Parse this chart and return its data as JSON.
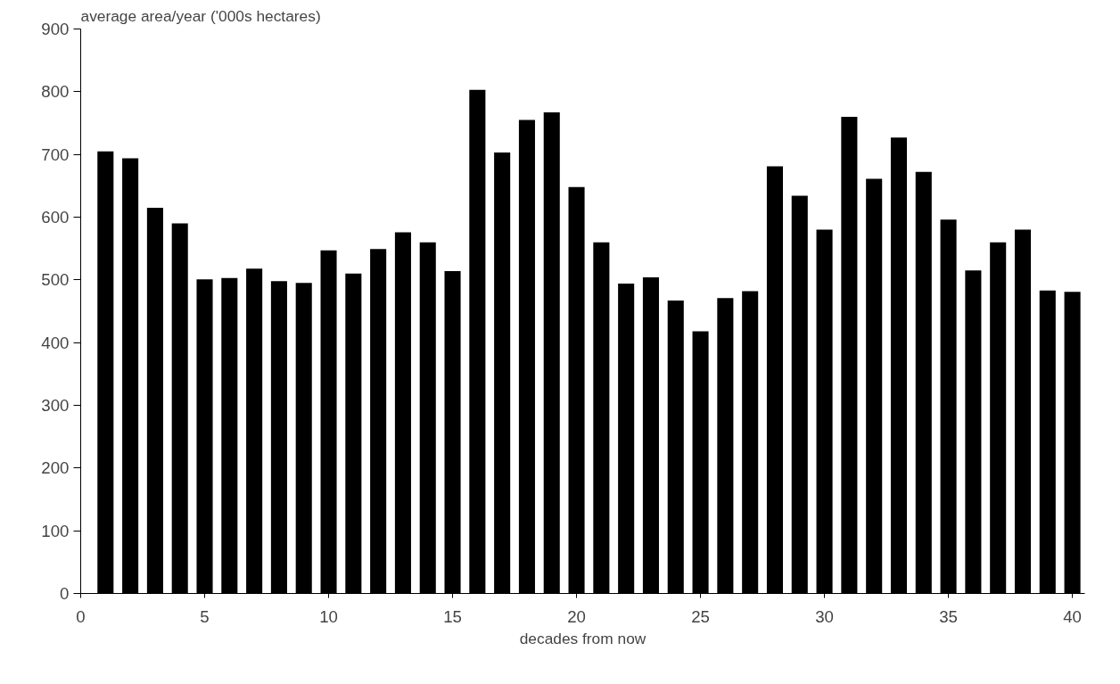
{
  "chart_data": {
    "type": "bar",
    "ylabel": "average area/year ('000s hectares)",
    "xlabel": "decades from now",
    "x": [
      1,
      2,
      3,
      4,
      5,
      6,
      7,
      8,
      9,
      10,
      11,
      12,
      13,
      14,
      15,
      16,
      17,
      18,
      19,
      20,
      21,
      22,
      23,
      24,
      25,
      26,
      27,
      28,
      29,
      30,
      31,
      32,
      33,
      34,
      35,
      36,
      37,
      38,
      39,
      40
    ],
    "values": [
      705,
      694,
      615,
      590,
      501,
      503,
      518,
      498,
      495,
      547,
      510,
      549,
      576,
      560,
      514,
      803,
      703,
      755,
      767,
      648,
      560,
      494,
      504,
      467,
      418,
      471,
      482,
      681,
      634,
      580,
      760,
      661,
      727,
      672,
      596,
      515,
      560,
      580,
      483,
      481
    ],
    "color": "#000000",
    "xlim": [
      0,
      40.5
    ],
    "xticks": [
      0,
      5,
      10,
      15,
      20,
      25,
      30,
      35,
      40
    ],
    "ylim": [
      0,
      900
    ],
    "yticks": [
      0,
      100,
      200,
      300,
      400,
      500,
      600,
      700,
      800,
      900
    ],
    "grid": false
  }
}
